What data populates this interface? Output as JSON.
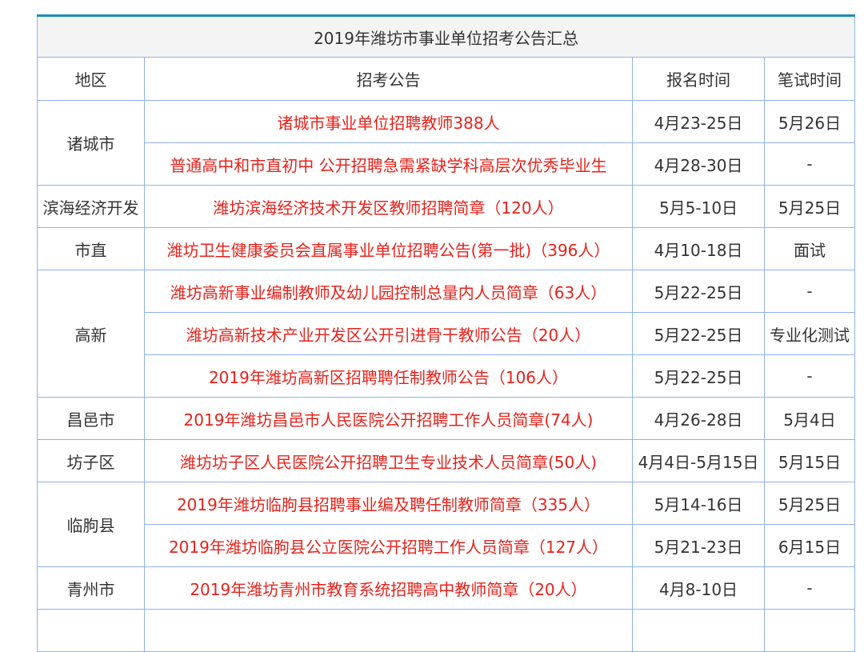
{
  "title": "2019年潍坊市事业单位招考公告汇总",
  "headers": [
    "地区",
    "招考公告",
    "报名时间",
    "笔试时间"
  ],
  "colors": {
    "link": "#e8221b",
    "border": "#8fb2ee",
    "top_border": "#1e8cc0"
  },
  "groups": [
    {
      "region": "诸城市",
      "rows": [
        [
          "诸城市事业单位招聘教师388人",
          "4月23-25日",
          "5月26日"
        ],
        [
          "普通高中和市直初中 公开招聘急需紧缺学科高层次优秀毕业生",
          "4月28-30日",
          "-"
        ]
      ]
    },
    {
      "region": "滨海经济开发",
      "rows": [
        [
          "潍坊滨海经济技术开发区教师招聘简章（120人）",
          "5月5-10日",
          "5月25日"
        ]
      ]
    },
    {
      "region": "市直",
      "rows": [
        [
          "潍坊卫生健康委员会直属事业单位招聘公告(第一批)（396人）",
          "4月10-18日",
          "面试"
        ]
      ]
    },
    {
      "region": "高新",
      "rows": [
        [
          "潍坊高新事业编制教师及幼儿园控制总量内人员简章（63人）",
          "5月22-25日",
          "-"
        ],
        [
          "潍坊高新技术产业开发区公开引进骨干教师公告（20人）",
          "5月22-25日",
          "专业化测试"
        ],
        [
          "2019年潍坊高新区招聘聘任制教师公告（106人）",
          "5月22-25日",
          "-"
        ]
      ]
    },
    {
      "region": "昌邑市",
      "rows": [
        [
          "2019年潍坊昌邑市人民医院公开招聘工作人员简章(74人)",
          "4月26-28日",
          "5月4日"
        ]
      ]
    },
    {
      "region": "坊子区",
      "rows": [
        [
          "潍坊坊子区人民医院公开招聘卫生专业技术人员简章(50人)",
          "4月4日-5月15日",
          "5月15日"
        ]
      ]
    },
    {
      "region": "临朐县",
      "rows": [
        [
          "2019年潍坊临朐县招聘事业编及聘任制教师简章（335人）",
          "5月14-16日",
          "5月25日"
        ],
        [
          "2019年潍坊临朐县公立医院公开招聘工作人员简章（127人）",
          "5月21-23日",
          "6月15日"
        ]
      ]
    },
    {
      "region": "青州市",
      "rows": [
        [
          "2019年潍坊青州市教育系统招聘高中教师简章（20人）",
          "4月8-10日",
          "-"
        ]
      ]
    }
  ]
}
